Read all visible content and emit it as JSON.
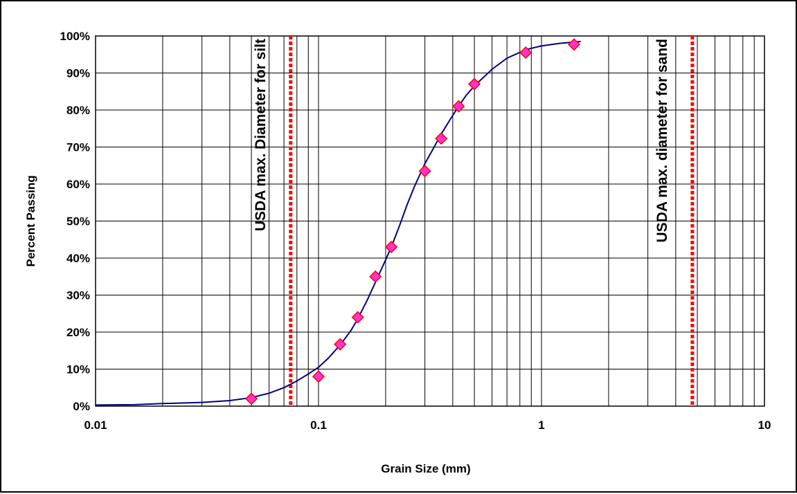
{
  "chart_data": {
    "type": "scatter",
    "title": "",
    "xlabel": "Grain Size (mm)",
    "ylabel": "Percent Passing",
    "x_scale": "log",
    "xlim": [
      0.01,
      10
    ],
    "ylim": [
      0,
      100
    ],
    "x_ticks": [
      0.01,
      0.1,
      1,
      10
    ],
    "x_tick_labels": [
      "0.01",
      "0.1",
      "1",
      "10"
    ],
    "y_ticks": [
      0,
      10,
      20,
      30,
      40,
      50,
      60,
      70,
      80,
      90,
      100
    ],
    "y_tick_labels": [
      "0%",
      "10%",
      "20%",
      "30%",
      "40%",
      "50%",
      "60%",
      "70%",
      "80%",
      "90%",
      "100%"
    ],
    "grid": true,
    "legend": "none",
    "series": [
      {
        "kind": "points",
        "marker": "diamond",
        "color": "#ff33cc",
        "edge_color": "#ff0000",
        "x": [
          0.05,
          0.1,
          0.125,
          0.15,
          0.18,
          0.212,
          0.3,
          0.355,
          0.425,
          0.5,
          0.85,
          1.4
        ],
        "y": [
          2,
          8,
          16.7,
          24,
          35,
          43,
          63.5,
          72.3,
          81,
          87,
          95.5,
          97.7
        ]
      },
      {
        "kind": "line",
        "color": "#000080",
        "x": [
          0.01,
          0.015,
          0.02,
          0.03,
          0.04,
          0.05,
          0.06,
          0.07,
          0.08,
          0.09,
          0.1,
          0.11,
          0.125,
          0.14,
          0.15,
          0.165,
          0.18,
          0.2,
          0.212,
          0.23,
          0.25,
          0.27,
          0.3,
          0.33,
          0.355,
          0.39,
          0.425,
          0.46,
          0.5,
          0.6,
          0.7,
          0.85,
          1.0,
          1.2,
          1.5
        ],
        "y": [
          0.3,
          0.4,
          0.7,
          1.0,
          1.5,
          2.3,
          3.5,
          5.0,
          6.8,
          8.7,
          10.5,
          12.8,
          16.5,
          20.5,
          23.6,
          28.5,
          33.5,
          39.5,
          43.0,
          48.5,
          54.5,
          59.5,
          65.5,
          70.0,
          73.5,
          77.5,
          81.0,
          84.0,
          86.5,
          91.0,
          94.0,
          96.3,
          97.3,
          98.0,
          98.5
        ]
      }
    ],
    "reference_lines": [
      {
        "x": 0.075,
        "label": "USDA max.  Diameter for silt",
        "color": "#ff0000",
        "style": "dotted"
      },
      {
        "x": 4.75,
        "label": "USDA max. diameter for sand",
        "color": "#ff0000",
        "style": "dotted"
      }
    ]
  }
}
